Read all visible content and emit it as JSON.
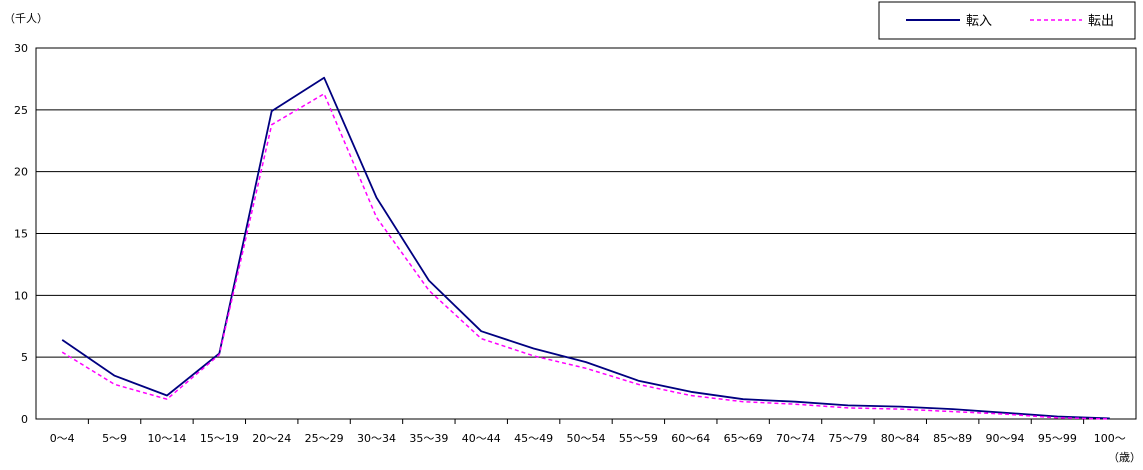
{
  "chart_data": {
    "type": "line",
    "y_unit": "（千人）",
    "x_unit": "（歳）",
    "categories": [
      "0〜4",
      "5〜9",
      "10〜14",
      "15〜19",
      "20〜24",
      "25〜29",
      "30〜34",
      "35〜39",
      "40〜44",
      "45〜49",
      "50〜54",
      "55〜59",
      "60〜64",
      "65〜69",
      "70〜74",
      "75〜79",
      "80〜84",
      "85〜89",
      "90〜94",
      "95〜99",
      "100〜"
    ],
    "ylim": [
      0,
      30
    ],
    "yticks": [
      "0",
      "5",
      "10",
      "15",
      "20",
      "25",
      "30"
    ],
    "grid": true,
    "legend_position": "top-right",
    "series": [
      {
        "name": "転入",
        "color": "#000080",
        "style": "solid",
        "values": [
          6.4,
          3.5,
          1.9,
          5.3,
          24.9,
          27.6,
          17.9,
          11.2,
          7.1,
          5.7,
          4.6,
          3.1,
          2.2,
          1.6,
          1.4,
          1.1,
          1.0,
          0.8,
          0.5,
          0.2,
          0.05
        ]
      },
      {
        "name": "転出",
        "color": "#ff00ff",
        "style": "dashed",
        "values": [
          5.4,
          2.8,
          1.6,
          5.2,
          23.8,
          26.3,
          16.3,
          10.4,
          6.5,
          5.1,
          4.1,
          2.8,
          1.9,
          1.4,
          1.2,
          0.9,
          0.8,
          0.6,
          0.4,
          0.1,
          0.0
        ]
      }
    ]
  }
}
